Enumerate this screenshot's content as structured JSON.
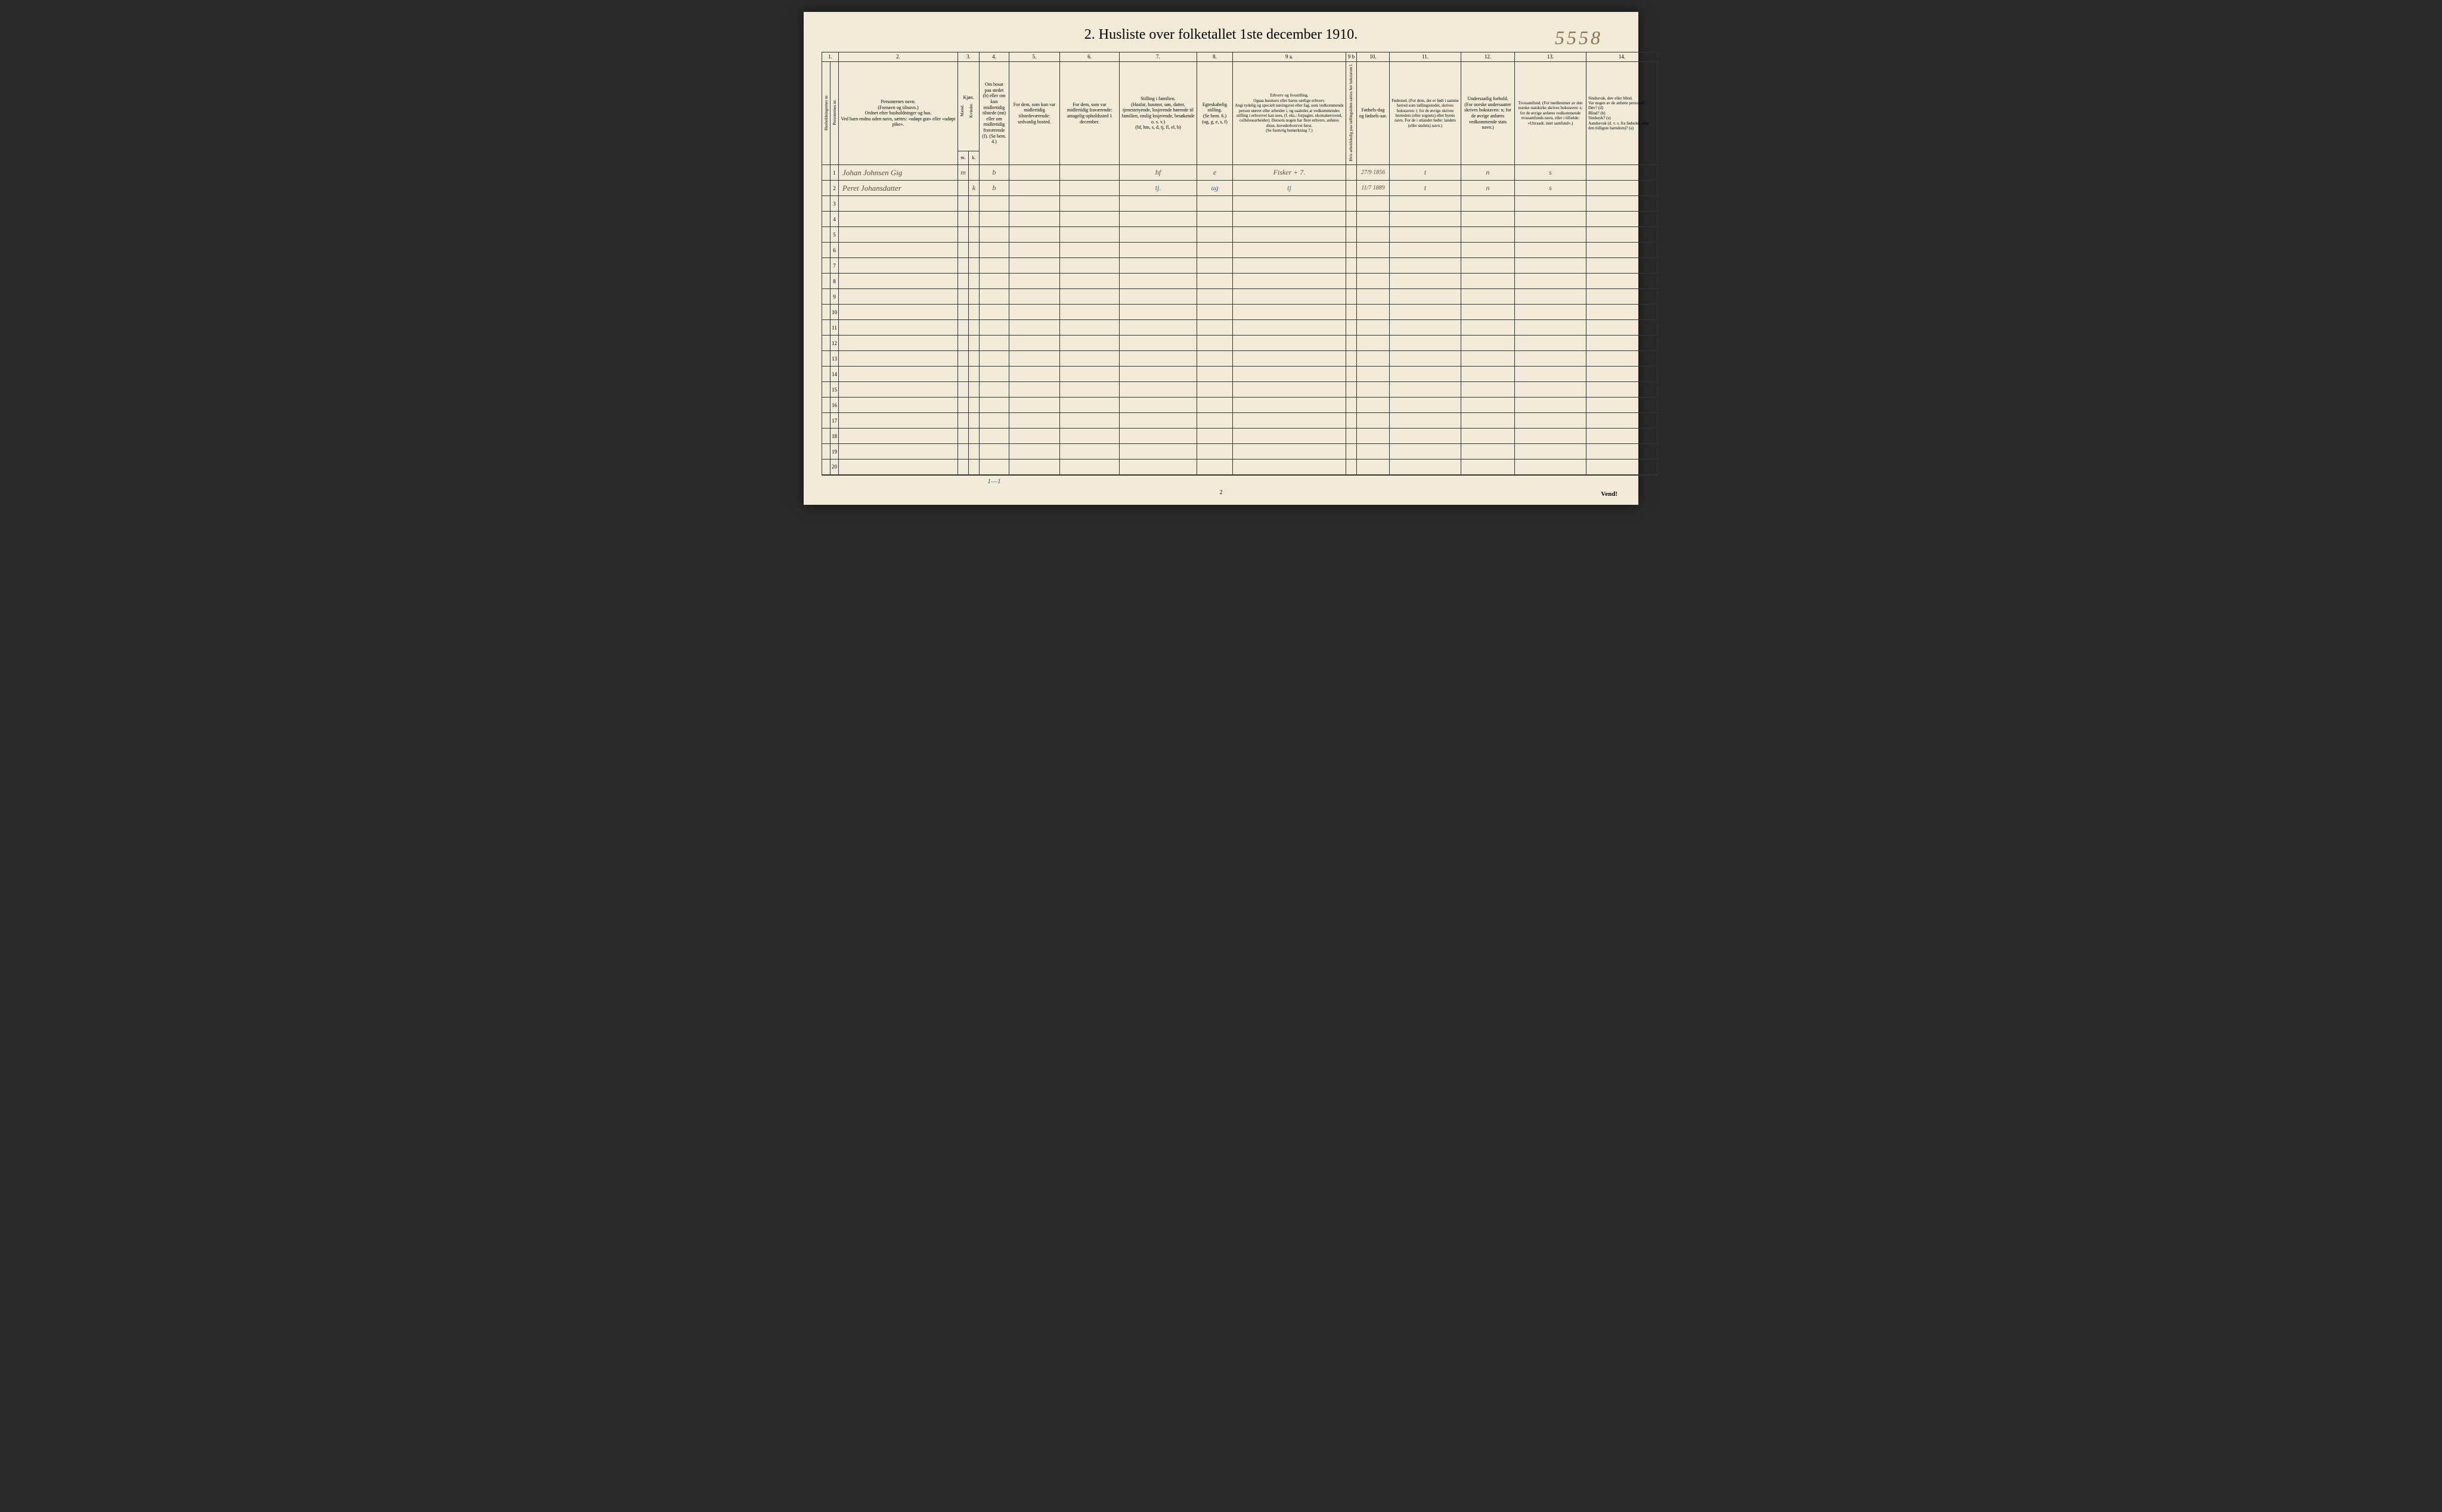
{
  "pencil_note": "5558",
  "title": "2.  Husliste over folketallet 1ste december 1910.",
  "page_number": "2",
  "vend": "Vend!",
  "col_nums": [
    "1.",
    "2.",
    "3.",
    "4.",
    "5.",
    "6.",
    "7.",
    "8.",
    "9 a.",
    "9 b",
    "10.",
    "11.",
    "12.",
    "13.",
    "14."
  ],
  "headers": {
    "c1a": "Husholdningernes nr.",
    "c1b": "Personernes nr.",
    "c2": "Personernes navn.\n(Fornavn og tilnavn.)\nOrdnet efter husholdninger og hus.\nVed barn endnu uden navn, sættes: «udøpt gut» eller «udøpt pike».",
    "c3": "Kjøn.",
    "c3a": "Mænd.",
    "c3b": "Kvinder.",
    "c4": "Om bosat paa stedet (b) eller om kun midlertidig tilstede (mt) eller om midlertidig fraværende (f). (Se bem. 4.)",
    "c5": "For dem, som kun var midlertidig tilstedeværende:\nsedvanlig bosted.",
    "c6": "For dem, som var midlertidig fraværende:\nantagelig opholdssted 1 december.",
    "c7": "Stilling i familien.\n(Husfar, husmor, søn, datter, tjenestetyende, losjerende hørende til familien, enslig losjerende, besøkende o. s. v.)\n(hf, hm, s, d, tj, fl, el, b)",
    "c8": "Egteskabelig stilling.\n(Se bem. 6.)\n(ug, g, e, s, f)",
    "c9a": "Erhverv og livsstilling.\nOgsaa husmors eller barns særlige erhverv.\nAngi tydelig og specielt næringsvei eller fag, som vedkommende person utøver eller arbeider i, og saaledes at vedkommendes stilling i erhvervet kan sees, (f. eks.: forpagter, skomakersvend, cellulosearbeider). Dersom nogen har flere erhverv, anføres disse, hovederhvervet først.\n(Se forøvrig bemerkning 7.)",
    "c9b": "Hvis arbeidsledig paa tællingstiden sættes her bokstaven l.",
    "c10": "Fødsels-dag og fødsels-aar.",
    "c11": "Fødested.\n(For dem, der er født i samme herred som tællingsstedet, skrives bokstaven: t; for de øvrige skrives herredets (eller sognets) eller byens navn. For de i utlandet fødte: landets (eller stedets) navn.)",
    "c12": "Undersaatlig forhold.\n(For norske undersaatter skrives bokstaven: n; for de øvrige anføres vedkommende stats navn.)",
    "c13": "Trossamfund.\n(For medlemmer av den norske statskirke skrives bokstaven: s; for de øvrige anføres vedkommende trossamfunds navn, eller i tilfælde: «Uttraadt, intet samfund».)",
    "c14": "Sindssvak, døv eller blind.\nVar nogen av de anførte personer:\nDøv?      (d)\nBlind?    (b)\nSindssyk? (s)\nAandssvak (d. v. s. fra fødselen eller den tidligste barndom)? (a)"
  },
  "sub_mk": {
    "m": "m.",
    "k": "k."
  },
  "rows": [
    {
      "num": "1",
      "name": "Johan Johnsen Gig",
      "m": "m",
      "k": "",
      "bosat": "b",
      "c5": "",
      "c6": "",
      "c7": "hf",
      "c8": "e",
      "c9a": "Fisker + 7.",
      "c9b": "",
      "c10": "27/9 1856",
      "c11": "t",
      "c12": "n",
      "c13": "s",
      "c14": ""
    },
    {
      "num": "2",
      "name": "Peret Johansdatter",
      "m": "",
      "k": "k",
      "bosat": "b",
      "c5": "",
      "c6": "",
      "c7": "tj.",
      "c8": "ug",
      "c9a": "tj",
      "c9b": "",
      "c10": "11/7 1889",
      "c11": "t",
      "c12": "n",
      "c13": "s",
      "c14": ""
    },
    {
      "num": "3"
    },
    {
      "num": "4"
    },
    {
      "num": "5"
    },
    {
      "num": "6"
    },
    {
      "num": "7"
    },
    {
      "num": "8"
    },
    {
      "num": "9"
    },
    {
      "num": "10"
    },
    {
      "num": "11"
    },
    {
      "num": "12"
    },
    {
      "num": "13"
    },
    {
      "num": "14"
    },
    {
      "num": "15"
    },
    {
      "num": "16"
    },
    {
      "num": "17"
    },
    {
      "num": "18"
    },
    {
      "num": "19"
    },
    {
      "num": "20"
    }
  ],
  "sum_mark": "1—1",
  "colors": {
    "paper": "#f0ead6",
    "ink": "#333333",
    "hand": "#5a4a3a",
    "hand_blue": "#4a5a8a",
    "pencil": "#8b7355",
    "bg": "#2a2a2a"
  }
}
